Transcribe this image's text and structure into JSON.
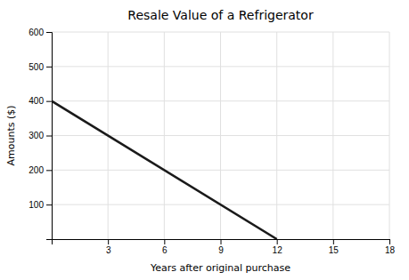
{
  "chart_data": {
    "type": "line",
    "title": "Resale Value of a Refrigerator",
    "xlabel": "Years after original purchase",
    "ylabel": "Amounts ($)",
    "x": [
      0,
      12
    ],
    "values": [
      400,
      0
    ],
    "color": "#1a1a1a",
    "xlim": [
      0,
      18
    ],
    "ylim": [
      0,
      600
    ],
    "xticks": [
      3,
      6,
      9,
      12,
      15,
      18
    ],
    "yticks": [
      100,
      200,
      300,
      400,
      500,
      600
    ],
    "grid": true
  }
}
